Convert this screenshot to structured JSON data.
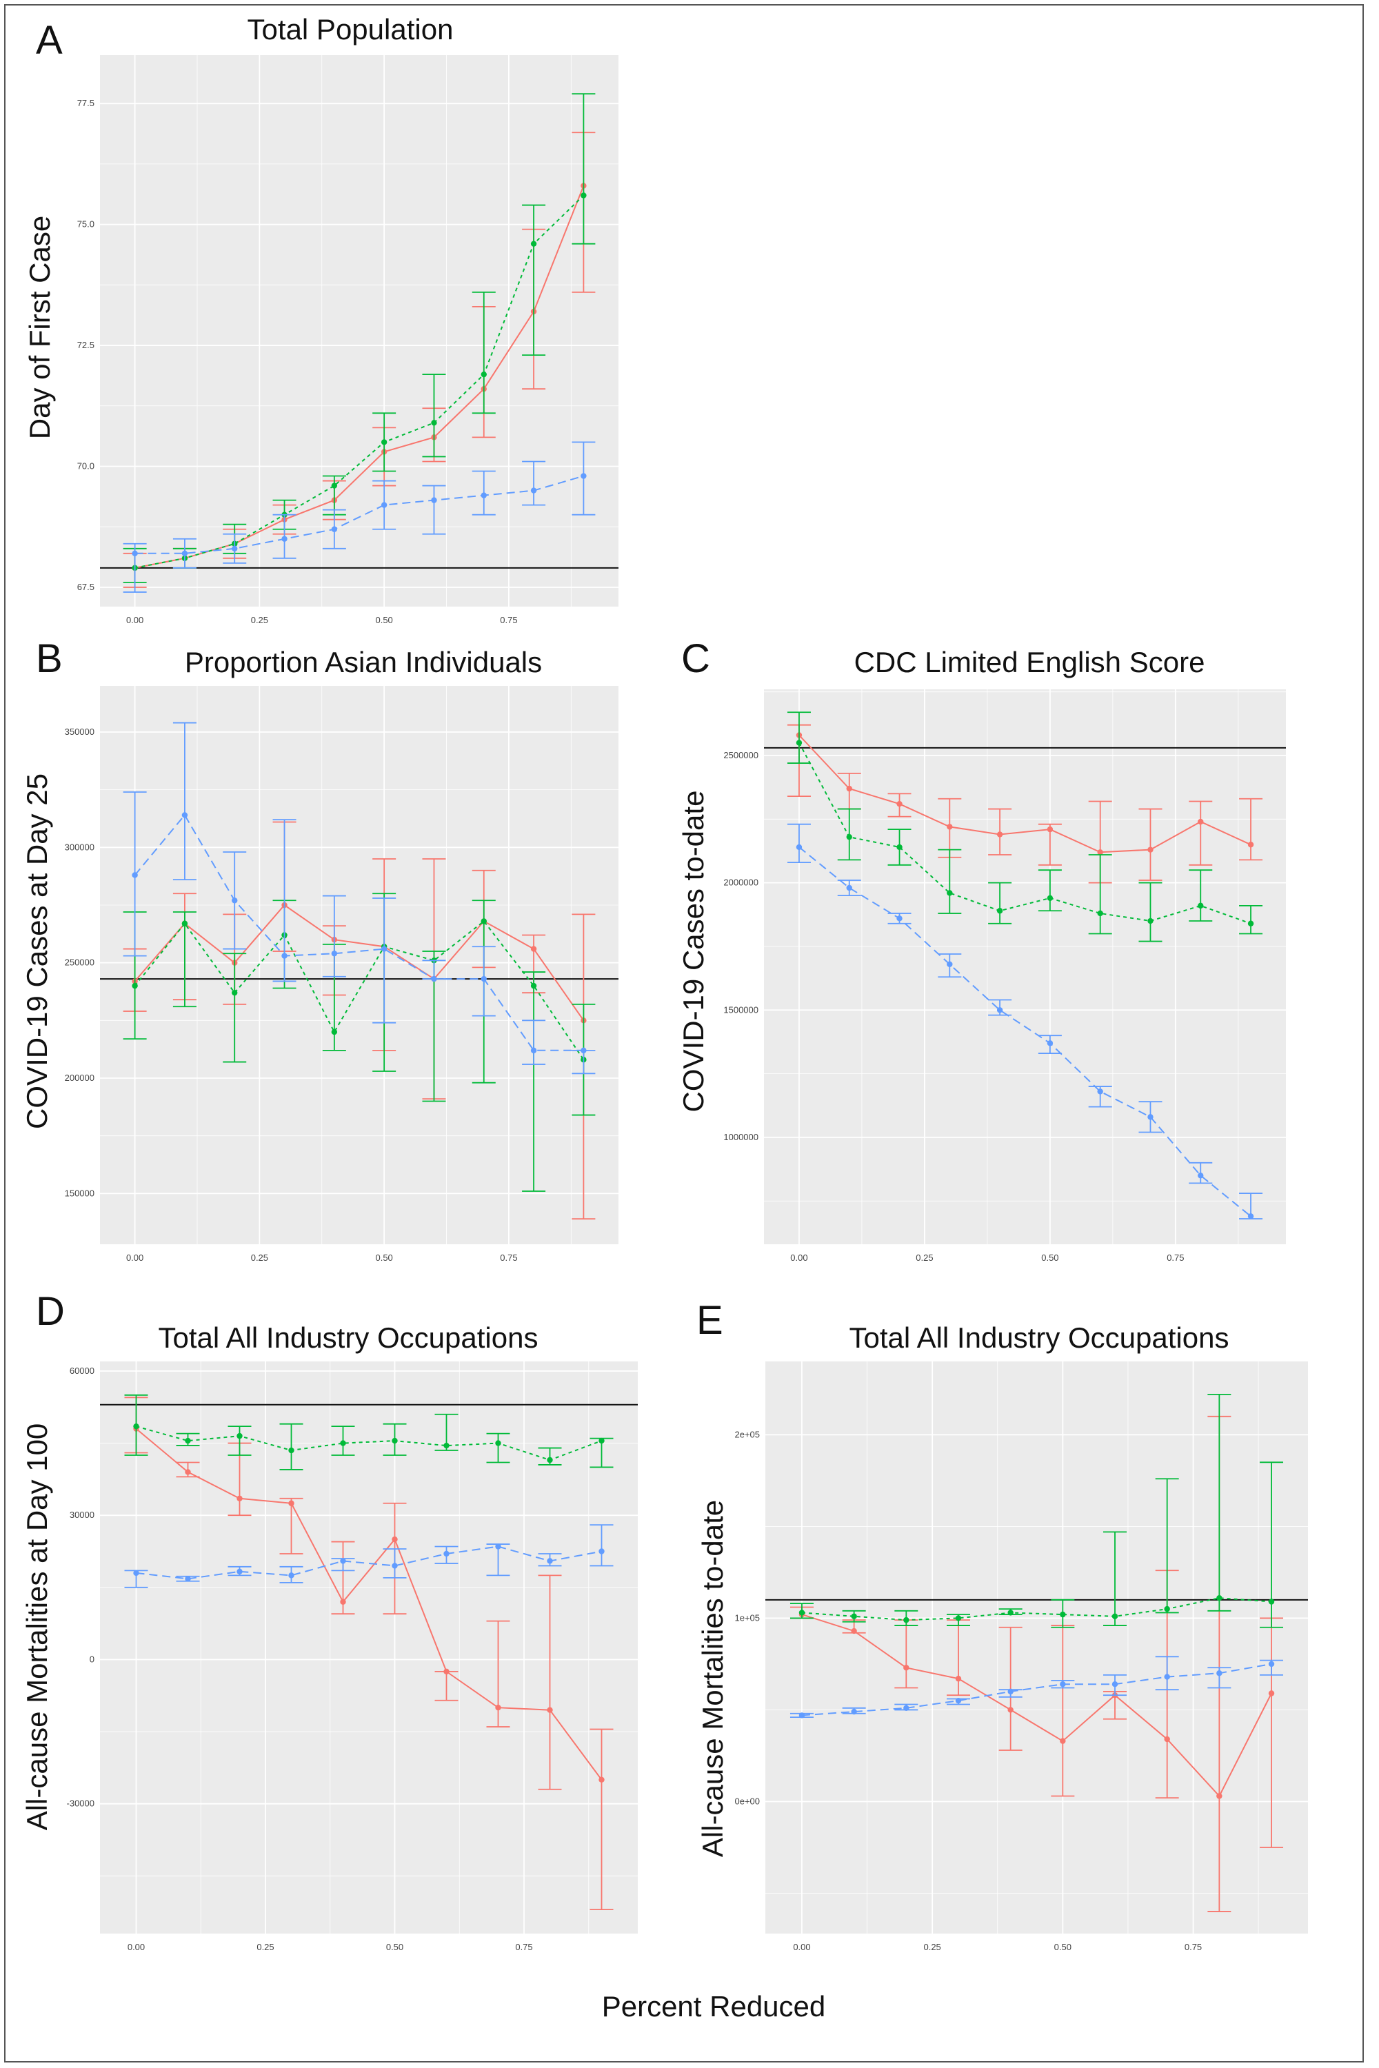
{
  "figure": {
    "x_axis_title": "Percent Reduced",
    "series_colors": [
      "#F8766D",
      "#00BA38",
      "#619CFF"
    ],
    "series_dash": [
      "",
      "5,5",
      "12,7"
    ]
  },
  "chart_data": [
    {
      "id": "A",
      "type": "line",
      "title": "Total Population",
      "ylabel": "Day of First Case",
      "xlabel": "",
      "xlim": [
        -0.07,
        0.97
      ],
      "ylim": [
        67.1,
        78.5
      ],
      "x_ticks": [
        0,
        0.25,
        0.5,
        0.75
      ],
      "x_tick_labels": [
        "0.00",
        "0.25",
        "0.50",
        "0.75"
      ],
      "y_ticks": [
        67.5,
        70,
        72.5,
        75,
        77.5
      ],
      "y_tick_labels": [
        "67.5",
        "70.0",
        "72.5",
        "75.0",
        "77.5"
      ],
      "hline": 67.9,
      "x": [
        0,
        0.1,
        0.2,
        0.3,
        0.4,
        0.5,
        0.6,
        0.7,
        0.8,
        0.9
      ],
      "series": [
        {
          "values": [
            67.9,
            68.1,
            68.4,
            68.9,
            69.3,
            70.3,
            70.6,
            71.6,
            73.2,
            75.8
          ],
          "lower": [
            67.5,
            67.9,
            68.1,
            68.6,
            68.9,
            69.6,
            70.1,
            70.6,
            71.6,
            73.6
          ],
          "upper": [
            68.2,
            68.3,
            68.7,
            69.2,
            69.7,
            70.8,
            71.2,
            73.3,
            74.9,
            76.9
          ]
        },
        {
          "values": [
            67.9,
            68.1,
            68.4,
            69.0,
            69.6,
            70.5,
            70.9,
            71.9,
            74.6,
            75.6
          ],
          "lower": [
            67.6,
            67.9,
            68.2,
            68.7,
            69.0,
            69.9,
            70.2,
            71.1,
            72.3,
            74.6
          ],
          "upper": [
            68.3,
            68.3,
            68.8,
            69.3,
            69.8,
            71.1,
            71.9,
            73.6,
            75.4,
            77.7
          ]
        },
        {
          "values": [
            68.2,
            68.2,
            68.3,
            68.5,
            68.7,
            69.2,
            69.3,
            69.4,
            69.5,
            69.8
          ],
          "lower": [
            67.4,
            67.9,
            68.0,
            68.1,
            68.3,
            68.7,
            68.6,
            69.0,
            69.2,
            69.0
          ],
          "upper": [
            68.4,
            68.5,
            68.6,
            69.0,
            69.1,
            69.7,
            69.6,
            69.9,
            70.1,
            70.5
          ]
        }
      ]
    },
    {
      "id": "B",
      "type": "line",
      "title": "Proportion Asian Individuals",
      "ylabel": "COVID-19 Cases at Day 25",
      "xlabel": "",
      "xlim": [
        -0.07,
        0.97
      ],
      "ylim": [
        128000,
        370000
      ],
      "x_ticks": [
        0,
        0.25,
        0.5,
        0.75
      ],
      "x_tick_labels": [
        "0.00",
        "0.25",
        "0.50",
        "0.75"
      ],
      "y_ticks": [
        150000,
        200000,
        250000,
        300000,
        350000
      ],
      "y_tick_labels": [
        "150000",
        "200000",
        "250000",
        "300000",
        "350000"
      ],
      "hline": 243000,
      "x": [
        0,
        0.1,
        0.2,
        0.3,
        0.4,
        0.5,
        0.6,
        0.7,
        0.8,
        0.9
      ],
      "series": [
        {
          "values": [
            242000,
            267000,
            250000,
            275000,
            260000,
            257000,
            243000,
            268000,
            256000,
            225000
          ],
          "lower": [
            229000,
            234000,
            232000,
            255000,
            236000,
            212000,
            191000,
            248000,
            237000,
            139000
          ],
          "upper": [
            256000,
            280000,
            271000,
            311000,
            266000,
            295000,
            295000,
            290000,
            262000,
            271000
          ]
        },
        {
          "values": [
            240000,
            267000,
            237000,
            262000,
            220000,
            257000,
            251000,
            268000,
            240000,
            208000
          ],
          "lower": [
            217000,
            231000,
            207000,
            239000,
            212000,
            203000,
            190000,
            198000,
            151000,
            184000
          ],
          "upper": [
            272000,
            272000,
            254000,
            277000,
            258000,
            280000,
            255000,
            277000,
            246000,
            232000
          ]
        },
        {
          "values": [
            288000,
            314000,
            277000,
            253000,
            254000,
            256000,
            243000,
            243000,
            212000,
            212000
          ],
          "lower": [
            253000,
            286000,
            256000,
            242000,
            244000,
            224000,
            243000,
            227000,
            206000,
            202000
          ],
          "upper": [
            324000,
            354000,
            298000,
            312000,
            279000,
            278000,
            251000,
            257000,
            225000,
            212000
          ]
        }
      ]
    },
    {
      "id": "C",
      "type": "line",
      "title": "CDC Limited English Score",
      "ylabel": "COVID-19 Cases to-date",
      "xlabel": "",
      "xlim": [
        -0.07,
        0.97
      ],
      "ylim": [
        580000,
        2760000
      ],
      "x_ticks": [
        0,
        0.25,
        0.5,
        0.75
      ],
      "x_tick_labels": [
        "0.00",
        "0.25",
        "0.50",
        "0.75"
      ],
      "y_ticks": [
        1000000,
        1500000,
        2000000,
        2500000
      ],
      "y_tick_labels": [
        "1000000",
        "1500000",
        "2000000",
        "2500000"
      ],
      "hline": 2530000,
      "x": [
        0,
        0.1,
        0.2,
        0.3,
        0.4,
        0.5,
        0.6,
        0.7,
        0.8,
        0.9
      ],
      "series": [
        {
          "values": [
            2580000,
            2370000,
            2310000,
            2220000,
            2190000,
            2210000,
            2120000,
            2130000,
            2240000,
            2150000
          ],
          "lower": [
            2340000,
            2290000,
            2260000,
            2100000,
            2110000,
            2070000,
            2000000,
            2010000,
            2070000,
            2090000
          ],
          "upper": [
            2620000,
            2430000,
            2350000,
            2330000,
            2290000,
            2230000,
            2320000,
            2290000,
            2320000,
            2330000
          ]
        },
        {
          "values": [
            2550000,
            2180000,
            2140000,
            1960000,
            1890000,
            1940000,
            1880000,
            1850000,
            1910000,
            1840000
          ],
          "lower": [
            2470000,
            2090000,
            2070000,
            1880000,
            1840000,
            1890000,
            1800000,
            1770000,
            1850000,
            1800000
          ],
          "upper": [
            2670000,
            2290000,
            2210000,
            2130000,
            2000000,
            2050000,
            2110000,
            2000000,
            2050000,
            1910000
          ]
        },
        {
          "values": [
            2140000,
            1980000,
            1860000,
            1680000,
            1500000,
            1370000,
            1180000,
            1080000,
            850000,
            690000
          ],
          "lower": [
            2080000,
            1950000,
            1840000,
            1630000,
            1480000,
            1330000,
            1120000,
            1020000,
            820000,
            680000
          ],
          "upper": [
            2230000,
            2010000,
            1880000,
            1720000,
            1540000,
            1400000,
            1200000,
            1140000,
            900000,
            780000
          ]
        }
      ]
    },
    {
      "id": "D",
      "type": "line",
      "title": "Total All Industry Occupations",
      "ylabel": "All-cause Mortalities at Day 100",
      "xlabel": "",
      "xlim": [
        -0.07,
        0.97
      ],
      "ylim": [
        -57000,
        62000
      ],
      "x_ticks": [
        0,
        0.25,
        0.5,
        0.75
      ],
      "x_tick_labels": [
        "0.00",
        "0.25",
        "0.50",
        "0.75"
      ],
      "y_ticks": [
        -30000,
        0,
        30000,
        60000
      ],
      "y_tick_labels": [
        "-30000",
        "0",
        "30000",
        "60000"
      ],
      "hline": 53000,
      "x": [
        0,
        0.1,
        0.2,
        0.3,
        0.4,
        0.5,
        0.6,
        0.7,
        0.8,
        0.9
      ],
      "series": [
        {
          "values": [
            48000,
            39000,
            33500,
            32500,
            12000,
            25000,
            -2500,
            -10000,
            -10500,
            -25000
          ],
          "lower": [
            43000,
            38000,
            30000,
            22000,
            9500,
            9500,
            -8500,
            -14000,
            -27000,
            -52000
          ],
          "upper": [
            54500,
            41000,
            45000,
            33500,
            24500,
            32500,
            -2500,
            8000,
            17500,
            -14500
          ]
        },
        {
          "values": [
            48500,
            45500,
            46500,
            43500,
            45000,
            45500,
            44500,
            45000,
            41500,
            45500
          ],
          "lower": [
            42500,
            44500,
            42500,
            39500,
            42500,
            42500,
            43500,
            41000,
            40500,
            40000
          ],
          "upper": [
            55000,
            47000,
            48500,
            49000,
            48500,
            49000,
            51000,
            47000,
            44000,
            46000
          ]
        },
        {
          "values": [
            18000,
            16800,
            18300,
            17500,
            20500,
            19500,
            22000,
            23500,
            20500,
            22500
          ],
          "lower": [
            15000,
            16300,
            17500,
            16000,
            18500,
            17000,
            20000,
            17500,
            19500,
            19500
          ],
          "upper": [
            18500,
            17300,
            19300,
            19300,
            21000,
            23000,
            23500,
            24000,
            22000,
            28000
          ]
        }
      ]
    },
    {
      "id": "E",
      "type": "line",
      "title": "Total All Industry Occupations",
      "ylabel": "All-cause Mortalities to-date",
      "xlabel": "",
      "xlim": [
        -0.07,
        0.97
      ],
      "ylim": [
        -72000,
        240000
      ],
      "x_ticks": [
        0,
        0.25,
        0.5,
        0.75
      ],
      "x_tick_labels": [
        "0.00",
        "0.25",
        "0.50",
        "0.75"
      ],
      "y_ticks": [
        0,
        100000,
        200000
      ],
      "y_tick_labels": [
        "0e+00",
        "1e+05",
        "2e+05"
      ],
      "hline": 110000,
      "x": [
        0,
        0.1,
        0.2,
        0.3,
        0.4,
        0.5,
        0.6,
        0.7,
        0.8,
        0.9
      ],
      "series": [
        {
          "values": [
            102000,
            93000,
            73000,
            67000,
            50000,
            33000,
            58000,
            34000,
            3000,
            59000
          ],
          "lower": [
            100000,
            92000,
            62000,
            58000,
            28000,
            3000,
            45000,
            2000,
            -60000,
            -25000
          ],
          "upper": [
            106000,
            99000,
            99000,
            99000,
            95000,
            96000,
            60000,
            126000,
            210000,
            100000
          ]
        },
        {
          "values": [
            103000,
            101000,
            99000,
            100000,
            103000,
            102000,
            101000,
            105000,
            111000,
            109000
          ],
          "lower": [
            100000,
            98000,
            96000,
            96000,
            102000,
            95000,
            96000,
            103000,
            104000,
            95000
          ],
          "upper": [
            108000,
            104000,
            104000,
            102000,
            105000,
            110000,
            147000,
            176000,
            222000,
            185000
          ]
        },
        {
          "values": [
            47000,
            49000,
            51000,
            55000,
            60000,
            64000,
            64000,
            68000,
            70000,
            75000
          ],
          "lower": [
            46000,
            48000,
            50000,
            53000,
            57000,
            62000,
            58000,
            61000,
            62000,
            69000
          ],
          "upper": [
            48000,
            51000,
            53000,
            56000,
            61000,
            66000,
            69000,
            79000,
            73000,
            77000
          ]
        }
      ]
    }
  ]
}
